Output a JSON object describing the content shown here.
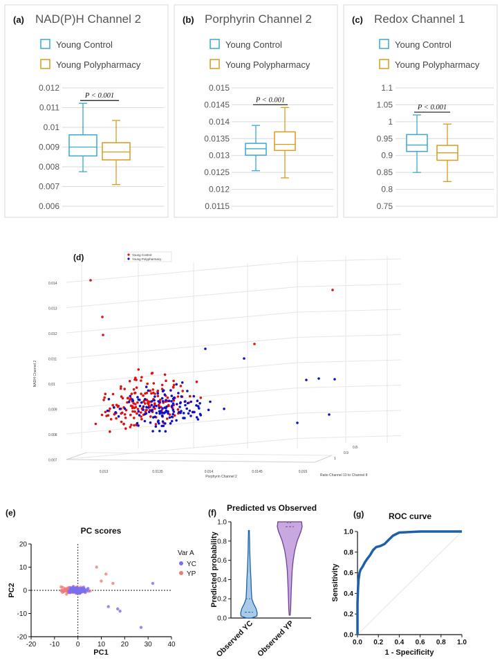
{
  "panels": [
    {
      "letter": "(a)",
      "title": "NAD(P)H Channel 2",
      "legend": [
        "Young Control",
        "Young Polypharmacy"
      ],
      "pvalue": "P < 0.001",
      "ticks": [
        "0.012",
        "0.011",
        "0.01",
        "0.009",
        "0.008",
        "0.007",
        "0.006"
      ]
    },
    {
      "letter": "(b)",
      "title": "Porphyrin Channel 2",
      "legend": [
        "Young Control",
        "Young Polypharmacy"
      ],
      "pvalue": "P < 0.001",
      "ticks": [
        "0.015",
        "0.0145",
        "0.014",
        "0.0135",
        "0.013",
        "0.0125",
        "0.012",
        "0.0115"
      ]
    },
    {
      "letter": "(c)",
      "title": "Redox Channel 1",
      "legend": [
        "Young Control",
        "Young Polypharmacy"
      ],
      "pvalue": "P < 0.001",
      "ticks": [
        "1.1",
        "1.05",
        "1",
        "0.95",
        "0.9",
        "0.85",
        "0.8",
        "0.75"
      ]
    }
  ],
  "scatter3d": {
    "letter": "(d)",
    "legend": [
      "Young Control",
      "Young Polypharmacy"
    ],
    "zlabel": "NADH Channel 2",
    "xlabel": "Porphyrin Channel 2",
    "ylabel": "Ratio Channel 10 to Channel 8",
    "zticks": [
      "0.014",
      "0.013",
      "0.012",
      "0.011",
      "0.01",
      "0.009",
      "0.008",
      "0.007"
    ],
    "xticks": [
      "0.013",
      "0.0135",
      "0.014",
      "0.0145",
      "0.015"
    ],
    "yticks": [
      "1",
      "0.9",
      "0.8"
    ]
  },
  "pca": {
    "letter": "(e)",
    "title": "PC scores",
    "xlabel": "PC1",
    "ylabel": "PC2",
    "legend_title": "Var A",
    "legend": [
      "YC",
      "YP"
    ],
    "xticks": [
      "-20",
      "-10",
      "0",
      "10",
      "20",
      "30",
      "40"
    ],
    "yticks": [
      "20",
      "10",
      "0",
      "-10",
      "-20"
    ]
  },
  "violin": {
    "letter": "(f)",
    "title": "Predicted vs Observed",
    "ylabel": "Predicted probability",
    "yticks": [
      "0.0",
      "0.2",
      "0.4",
      "0.6",
      "0.8",
      "1.0"
    ],
    "categories": [
      "Observed YC",
      "Observed YP"
    ]
  },
  "roc": {
    "letter": "(g)",
    "title": "ROC curve",
    "xlabel": "1 - Specificity",
    "ylabel": "Sensitivity",
    "xticks": [
      "0.0",
      "0.2",
      "0.4",
      "0.6",
      "0.8",
      "1.0"
    ],
    "yticks": [
      "0.0",
      "0.2",
      "0.4",
      "0.6",
      "0.8",
      "1.0"
    ]
  },
  "colors": {
    "control": "#3aa7d4",
    "poly": "#d99a1c",
    "red": "#e01010",
    "blue": "#1010c8",
    "yc": "#7a6ff0",
    "yp": "#f07a7a",
    "violin_yc": "#a8cce8",
    "violin_yp": "#c9a8e0",
    "roc": "#1f5fa8"
  },
  "chart_data": [
    {
      "type": "box",
      "title": "NAD(P)H Channel 2",
      "categories": [
        "Young Control",
        "Young Polypharmacy"
      ],
      "ylim": [
        0.006,
        0.012
      ],
      "boxes": [
        {
          "name": "Young Control",
          "min": 0.00775,
          "q1": 0.00855,
          "median": 0.009,
          "q3": 0.00962,
          "max": 0.01122
        },
        {
          "name": "Young Polypharmacy",
          "min": 0.0071,
          "q1": 0.00835,
          "median": 0.00875,
          "q3": 0.00922,
          "max": 0.01035
        }
      ]
    },
    {
      "type": "box",
      "title": "Porphyrin Channel 2",
      "categories": [
        "Young Control",
        "Young Polypharmacy"
      ],
      "ylim": [
        0.0115,
        0.015
      ],
      "boxes": [
        {
          "name": "Young Control",
          "min": 0.01255,
          "q1": 0.01301,
          "median": 0.0132,
          "q3": 0.01336,
          "max": 0.01389
        },
        {
          "name": "Young Polypharmacy",
          "min": 0.01234,
          "q1": 0.01315,
          "median": 0.01333,
          "q3": 0.0137,
          "max": 0.01442
        }
      ]
    },
    {
      "type": "box",
      "title": "Redox Channel 1",
      "categories": [
        "Young Control",
        "Young Polypharmacy"
      ],
      "ylim": [
        0.75,
        1.1
      ],
      "boxes": [
        {
          "name": "Young Control",
          "min": 0.85,
          "q1": 0.912,
          "median": 0.931,
          "q3": 0.962,
          "max": 1.02
        },
        {
          "name": "Young Polypharmacy",
          "min": 0.823,
          "q1": 0.886,
          "median": 0.908,
          "q3": 0.93,
          "max": 0.993
        }
      ]
    },
    {
      "type": "line",
      "title": "ROC curve",
      "x": [
        0,
        0,
        0.005,
        0.01,
        0.02,
        0.03,
        0.05,
        0.07,
        0.09,
        0.12,
        0.15,
        0.18,
        0.22,
        0.26,
        0.3,
        0.34,
        0.4,
        0.5,
        0.6,
        0.7,
        0.8,
        0.9,
        1.0
      ],
      "y": [
        0,
        0.3,
        0.45,
        0.53,
        0.6,
        0.63,
        0.66,
        0.7,
        0.73,
        0.77,
        0.82,
        0.85,
        0.86,
        0.88,
        0.92,
        0.96,
        0.99,
        0.995,
        1.0,
        1.0,
        1.0,
        1.0,
        1.0
      ],
      "xlim": [
        0,
        1
      ],
      "ylim": [
        0,
        1
      ]
    },
    {
      "type": "violin",
      "title": "Predicted vs Observed",
      "categories": [
        "Observed YC",
        "Observed YP"
      ],
      "ylim": [
        0,
        1
      ],
      "series": [
        {
          "name": "Observed YC",
          "y": [
            0.0,
            0.02,
            0.05,
            0.1,
            0.15,
            0.2,
            0.3,
            0.4,
            0.5,
            0.6,
            0.7,
            0.8,
            0.91
          ],
          "width": [
            0.3,
            0.95,
            1.0,
            0.85,
            0.55,
            0.35,
            0.28,
            0.25,
            0.18,
            0.14,
            0.1,
            0.08,
            0.05
          ]
        },
        {
          "name": "Observed YP",
          "y": [
            0.03,
            0.1,
            0.2,
            0.3,
            0.4,
            0.5,
            0.6,
            0.7,
            0.8,
            0.9,
            0.95,
            1.0
          ],
          "width": [
            0.04,
            0.08,
            0.1,
            0.13,
            0.16,
            0.2,
            0.28,
            0.4,
            0.6,
            0.9,
            1.0,
            0.95
          ]
        }
      ]
    }
  ]
}
